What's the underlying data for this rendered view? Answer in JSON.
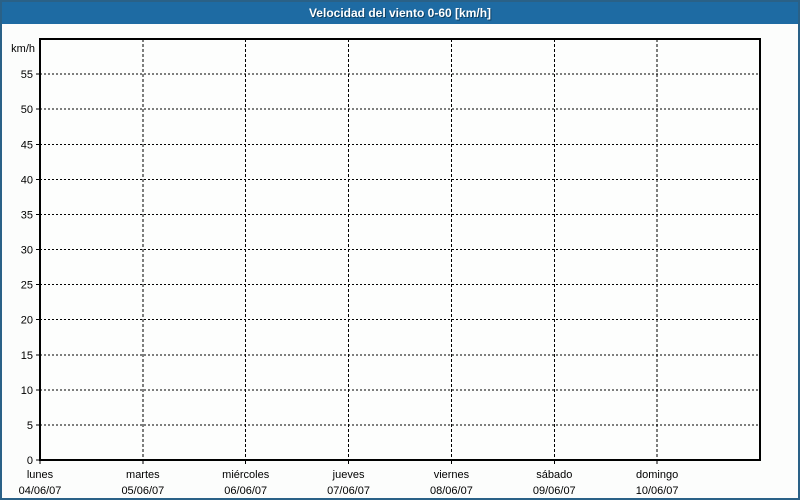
{
  "titlebar": {
    "title": "Velocidad del viento 0-60 [km/h]"
  },
  "colors": {
    "titlebar_bg": "#1e6ba3",
    "titlebar_text": "#ffffff",
    "titlebar_text_shadow": "#0d3f63",
    "window_border": "#2a6187",
    "page_bg": "#fcfdfc",
    "plot_bg": "#fdfefd",
    "axis": "#000000",
    "grid": "#000000",
    "label_text": "#000000"
  },
  "chart_data": {
    "type": "line",
    "title": "Velocidad del viento 0-60 [km/h]",
    "ylabel": "km/h",
    "xlabel": "",
    "ylim": [
      0,
      60
    ],
    "yticks": [
      0,
      5,
      10,
      15,
      20,
      25,
      30,
      35,
      40,
      45,
      50,
      55
    ],
    "grid": true,
    "grid_style": "dashed",
    "legend": "none",
    "categories": [
      {
        "day": "lunes",
        "date": "04/06/07"
      },
      {
        "day": "martes",
        "date": "05/06/07"
      },
      {
        "day": "miércoles",
        "date": "06/06/07"
      },
      {
        "day": "jueves",
        "date": "07/06/07"
      },
      {
        "day": "viernes",
        "date": "08/06/07"
      },
      {
        "day": "sábado",
        "date": "09/06/07"
      },
      {
        "day": "domingo",
        "date": "10/06/07"
      }
    ],
    "series": []
  }
}
